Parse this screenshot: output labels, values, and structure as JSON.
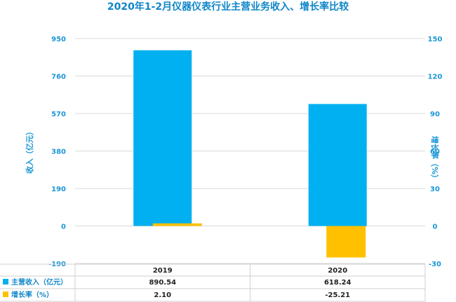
{
  "chart_data": {
    "type": "bar",
    "title": "2020年1-2月仪器仪表行业主营业务收入、增长率比较",
    "categories": [
      "2019",
      "2020"
    ],
    "series": [
      {
        "name": "主营收入（亿元）",
        "axis": "left",
        "color": "#00b0f0",
        "values": [
          890.54,
          618.24
        ],
        "value_labels": [
          "890.54",
          "618.24"
        ]
      },
      {
        "name": "增长率（%）",
        "axis": "right",
        "color": "#ffc000",
        "values": [
          2.1,
          -25.21
        ],
        "value_labels": [
          "2.10",
          "-25.21"
        ]
      }
    ],
    "y_left": {
      "label": "收入（亿元）",
      "ticks": [
        "-190",
        "0",
        "190",
        "380",
        "570",
        "760",
        "950"
      ],
      "range": [
        -190,
        950
      ]
    },
    "y_right": {
      "label": "增长率（%）",
      "ticks": [
        "-30",
        "0",
        "30",
        "60",
        "90",
        "120",
        "150"
      ],
      "range": [
        -30,
        150
      ]
    },
    "grid": true,
    "legend": "data-table"
  }
}
